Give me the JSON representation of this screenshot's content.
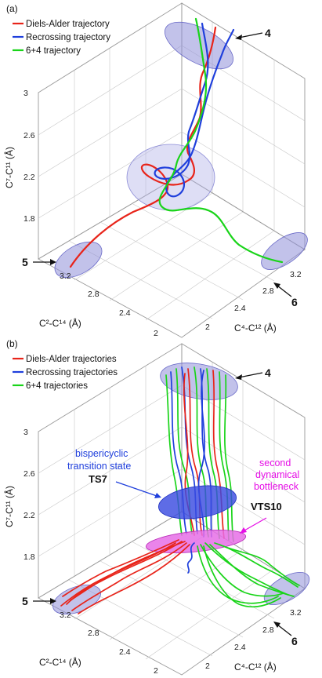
{
  "figure": {
    "panel_a": {
      "label": "(a)",
      "legend": [
        {
          "text": "Diels-Alder trajectory",
          "color": "#e8241a"
        },
        {
          "text": "Recrossing trajectory",
          "color": "#1f3fdc"
        },
        {
          "text": "6+4 trajectory",
          "color": "#19d419"
        }
      ],
      "z_ticks": [
        "3",
        "2.6",
        "2.2",
        "1.8"
      ],
      "z_axis_title": "C⁷-C¹¹ (Å)",
      "left_ticks": [
        "3.2",
        "2.8",
        "2.4",
        "2"
      ],
      "left_axis_title": "C²-C¹⁴ (Å)",
      "right_ticks": [
        "3.2",
        "2.8",
        "2.4",
        "2"
      ],
      "right_axis_title": "C⁴-C¹² (Å)",
      "markers": {
        "top": "4",
        "left": "5",
        "right": "6"
      }
    },
    "panel_b": {
      "label": "(b)",
      "legend": [
        {
          "text": "Diels-Alder trajectories",
          "color": "#e8241a"
        },
        {
          "text": "Recrossing trajectories",
          "color": "#1f3fdc"
        },
        {
          "text": "6+4 trajectories",
          "color": "#19d419"
        }
      ],
      "z_ticks": [
        "3",
        "2.6",
        "2.2",
        "1.8"
      ],
      "z_axis_title": "C⁷-C¹¹ (Å)",
      "left_ticks": [
        "3.2",
        "2.8",
        "2.4",
        "2"
      ],
      "left_axis_title": "C²-C¹⁴ (Å)",
      "right_ticks": [
        "3.2",
        "2.8",
        "2.4",
        "2"
      ],
      "right_axis_title": "C⁴-C¹² (Å)",
      "markers": {
        "top": "4",
        "left": "5",
        "right": "6"
      },
      "ts_annotation": {
        "line1": "bispericyclic",
        "line2": "transition state",
        "name": "TS7",
        "color": "#1f3fdc"
      },
      "vts_annotation": {
        "line1": "second",
        "line2": "dynamical",
        "line3": "bottleneck",
        "name": "VTS10",
        "color": "#e60ee6"
      }
    }
  }
}
